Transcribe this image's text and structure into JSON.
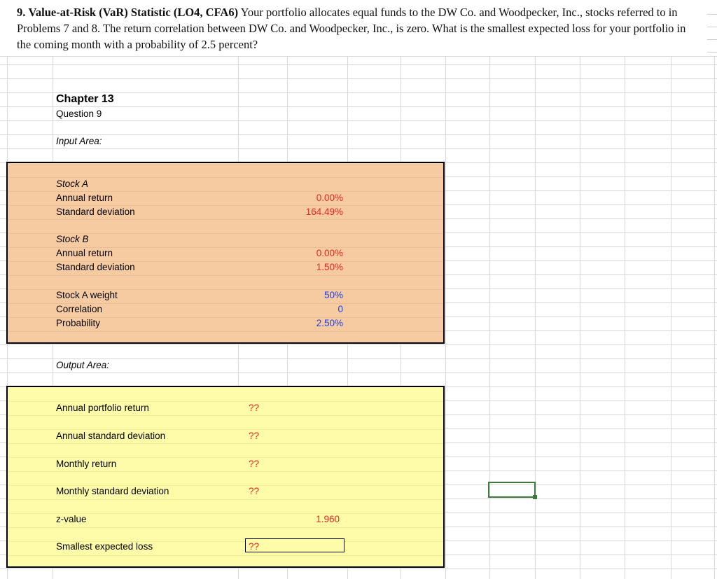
{
  "question": {
    "number": "9.",
    "title": "Value-at-Risk (VaR) Statistic (LO4, CFA6)",
    "body": "Your portfolio allocates equal funds to the DW Co. and Woodpecker, Inc., stocks referred to in Problems 7 and 8. The return correlation between DW Co. and Woodpecker, Inc., is zero. What is the smallest expected loss for your portfolio in the coming month with a probability of 2.5 percent?"
  },
  "sheet": {
    "chapter": "Chapter 13",
    "question_label": "Question 9",
    "input_area_label": "Input Area:",
    "output_area_label": "Output Area:",
    "inputs": {
      "stock_a": {
        "header": "Stock A",
        "annual_return_label": "Annual return",
        "annual_return": "0.00%",
        "std_dev_label": "Standard deviation",
        "std_dev": "164.49%"
      },
      "stock_b": {
        "header": "Stock B",
        "annual_return_label": "Annual return",
        "annual_return": "0.00%",
        "std_dev_label": "Standard deviation",
        "std_dev": "1.50%"
      },
      "weight_label": "Stock A weight",
      "weight": "50%",
      "correlation_label": "Correlation",
      "correlation": "0",
      "probability_label": "Probability",
      "probability": "2.50%"
    },
    "outputs": {
      "annual_portfolio_return_label": "Annual portfolio return",
      "annual_portfolio_return": "??",
      "annual_std_dev_label": "Annual standard deviation",
      "annual_std_dev": "??",
      "monthly_return_label": "Monthly return",
      "monthly_return": "??",
      "monthly_std_dev_label": "Monthly standard deviation",
      "monthly_std_dev": "??",
      "z_value_label": "z-value",
      "z_value": "1.960",
      "smallest_loss_label": "Smallest expected loss",
      "smallest_loss": "??"
    }
  },
  "colors": {
    "input_fill": "#f7cba2",
    "output_fill": "#fefca9",
    "input_value_red": "#e0281f",
    "input_value_blue": "#1f3fe0",
    "selection_green": "#3d7a3a"
  }
}
